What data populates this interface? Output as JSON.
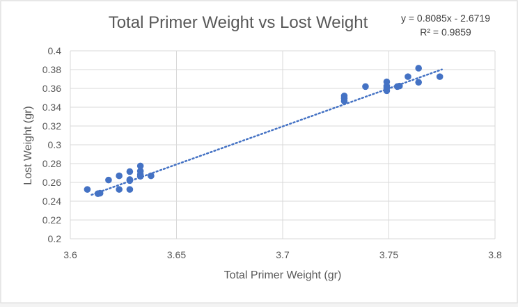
{
  "chart_data": {
    "type": "scatter",
    "title": "Total Primer Weight vs Lost Weight",
    "xlabel": "Total Primer Weight (gr)",
    "ylabel": "Lost Weight (gr)",
    "xlim": [
      3.6,
      3.8
    ],
    "ylim": [
      0.2,
      0.4
    ],
    "xticks": [
      3.6,
      3.65,
      3.7,
      3.75,
      3.8
    ],
    "xtick_labels": [
      "3.6",
      "3.65",
      "3.7",
      "3.75",
      "3.8"
    ],
    "yticks": [
      0.2,
      0.22,
      0.24,
      0.26,
      0.28,
      0.3,
      0.32,
      0.34,
      0.36,
      0.38,
      0.4
    ],
    "ytick_labels": [
      "0.2",
      "0.22",
      "0.24",
      "0.26",
      "0.28",
      "0.3",
      "0.32",
      "0.34",
      "0.36",
      "0.38",
      "0.4"
    ],
    "grid": "major gridlines on",
    "legend": "none",
    "trendline": {
      "type": "linear",
      "slope": 0.8085,
      "intercept": -2.6719,
      "x_range": [
        3.61,
        3.775
      ],
      "equation_label": "y = 0.8085x - 2.6719",
      "r2_label": "R² = 0.9859"
    },
    "colors": {
      "points": "#4472c4",
      "trendline": "#4472c4",
      "grid": "#d9d9d9",
      "axis_text": "#595959",
      "title_text": "#595959",
      "background": "#ffffff"
    },
    "points": [
      {
        "x": 3.608,
        "y": 0.2525
      },
      {
        "x": 3.613,
        "y": 0.248
      },
      {
        "x": 3.614,
        "y": 0.2485
      },
      {
        "x": 3.618,
        "y": 0.2625
      },
      {
        "x": 3.623,
        "y": 0.2525
      },
      {
        "x": 3.623,
        "y": 0.267
      },
      {
        "x": 3.628,
        "y": 0.2525
      },
      {
        "x": 3.628,
        "y": 0.262
      },
      {
        "x": 3.628,
        "y": 0.263
      },
      {
        "x": 3.628,
        "y": 0.2715
      },
      {
        "x": 3.633,
        "y": 0.2665
      },
      {
        "x": 3.633,
        "y": 0.2685
      },
      {
        "x": 3.633,
        "y": 0.272
      },
      {
        "x": 3.633,
        "y": 0.2775
      },
      {
        "x": 3.638,
        "y": 0.267
      },
      {
        "x": 3.729,
        "y": 0.3465
      },
      {
        "x": 3.729,
        "y": 0.3495
      },
      {
        "x": 3.729,
        "y": 0.352
      },
      {
        "x": 3.739,
        "y": 0.362
      },
      {
        "x": 3.749,
        "y": 0.3575
      },
      {
        "x": 3.749,
        "y": 0.3605
      },
      {
        "x": 3.749,
        "y": 0.3625
      },
      {
        "x": 3.749,
        "y": 0.367
      },
      {
        "x": 3.754,
        "y": 0.362
      },
      {
        "x": 3.755,
        "y": 0.3625
      },
      {
        "x": 3.759,
        "y": 0.3725
      },
      {
        "x": 3.764,
        "y": 0.3665
      },
      {
        "x": 3.764,
        "y": 0.3815
      },
      {
        "x": 3.774,
        "y": 0.3725
      }
    ]
  }
}
